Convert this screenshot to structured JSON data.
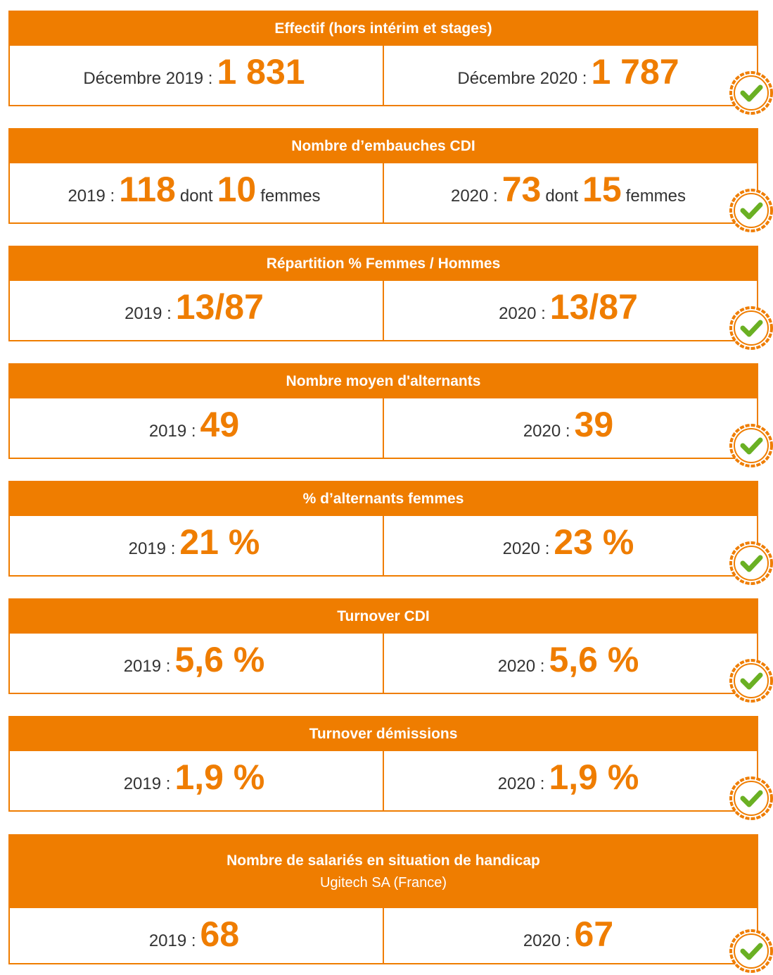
{
  "sections": [
    {
      "title": "Effectif (hors intérim et stages)",
      "cells": [
        [
          {
            "text": "Décembre 2019 :",
            "style": "small"
          },
          {
            "text": "1 831",
            "style": "big"
          }
        ],
        [
          {
            "text": "Décembre 2020 :",
            "style": "small"
          },
          {
            "text": "1 787",
            "style": "big"
          }
        ]
      ]
    },
    {
      "title": "Nombre d’embauches CDI",
      "cells": [
        [
          {
            "text": "2019 :",
            "style": "small"
          },
          {
            "text": "118",
            "style": "big"
          },
          {
            "text": "dont",
            "style": "small"
          },
          {
            "text": "10",
            "style": "big"
          },
          {
            "text": "femmes",
            "style": "small"
          }
        ],
        [
          {
            "text": "2020 :",
            "style": "small"
          },
          {
            "text": "73",
            "style": "big"
          },
          {
            "text": "dont",
            "style": "small"
          },
          {
            "text": "15",
            "style": "big"
          },
          {
            "text": "femmes",
            "style": "small"
          }
        ]
      ]
    },
    {
      "title": "Répartition  % Femmes / Hommes",
      "cells": [
        [
          {
            "text": "2019 :",
            "style": "small"
          },
          {
            "text": "13/87",
            "style": "big"
          }
        ],
        [
          {
            "text": "2020 :",
            "style": "small"
          },
          {
            "text": "13/87",
            "style": "big"
          }
        ]
      ]
    },
    {
      "title": "Nombre moyen d'alternants",
      "cells": [
        [
          {
            "text": "2019 :",
            "style": "small"
          },
          {
            "text": "49",
            "style": "big"
          }
        ],
        [
          {
            "text": "2020 :",
            "style": "small"
          },
          {
            "text": "39",
            "style": "big"
          }
        ]
      ]
    },
    {
      "title": "% d’alternants femmes",
      "cells": [
        [
          {
            "text": "2019 :",
            "style": "small"
          },
          {
            "text": "21 %",
            "style": "big"
          }
        ],
        [
          {
            "text": "2020 :",
            "style": "small"
          },
          {
            "text": "23 %",
            "style": "big"
          }
        ]
      ]
    },
    {
      "title": "Turnover CDI",
      "cells": [
        [
          {
            "text": "2019 :",
            "style": "small"
          },
          {
            "text": "5,6 %",
            "style": "big"
          }
        ],
        [
          {
            "text": "2020 :",
            "style": "small"
          },
          {
            "text": "5,6 %",
            "style": "big"
          }
        ]
      ]
    },
    {
      "title": "Turnover démissions",
      "cells": [
        [
          {
            "text": "2019 :",
            "style": "small"
          },
          {
            "text": "1,9 %",
            "style": "big"
          }
        ],
        [
          {
            "text": "2020 :",
            "style": "small"
          },
          {
            "text": "1,9 %",
            "style": "big"
          }
        ]
      ]
    },
    {
      "title": "Nombre de salariés en situation de handicap",
      "subtitle": "Ugitech SA (France)",
      "cells": [
        [
          {
            "text": "2019 :",
            "style": "small"
          },
          {
            "text": "68",
            "style": "big"
          }
        ],
        [
          {
            "text": "2020 :",
            "style": "small"
          },
          {
            "text": "67",
            "style": "big"
          }
        ]
      ]
    }
  ]
}
